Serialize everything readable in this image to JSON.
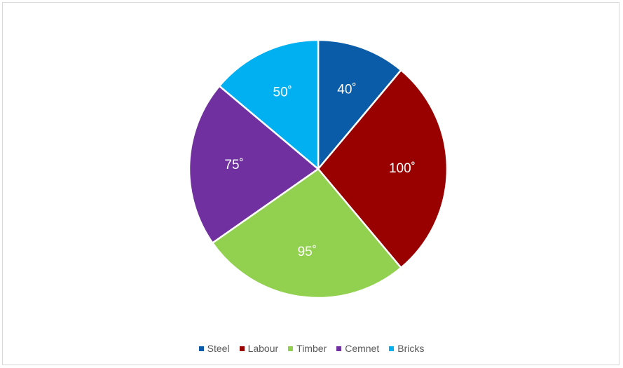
{
  "chart_data": {
    "type": "pie",
    "title": "",
    "categories": [
      "Steel",
      "Labour",
      "Timber",
      "Cemnet",
      "Bricks"
    ],
    "values": [
      40,
      100,
      95,
      75,
      50
    ],
    "labels": [
      "40˚",
      "100˚",
      "95˚",
      "75˚",
      "50˚"
    ],
    "colors": [
      "#0a5ca8",
      "#990000",
      "#92d050",
      "#7030a0",
      "#00b0f0"
    ],
    "start": "12 o'clock",
    "direction": "clockwise",
    "legend_position": "bottom"
  }
}
